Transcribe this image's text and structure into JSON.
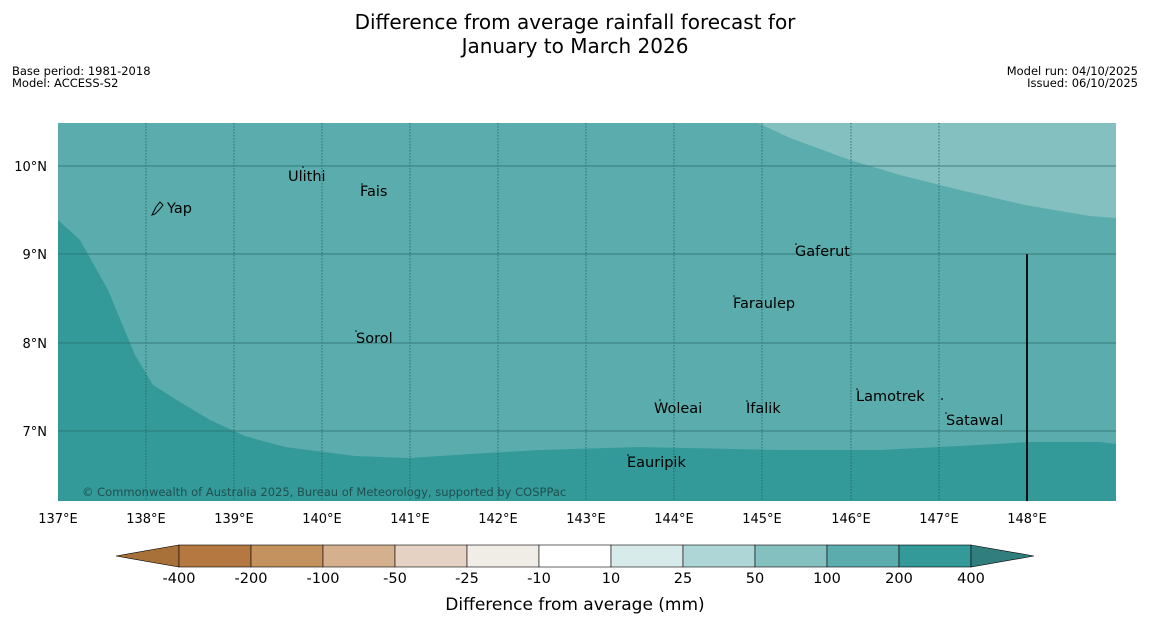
{
  "title": {
    "line1": "Difference from average rainfall forecast for",
    "line2": "January to March 2026"
  },
  "meta": {
    "base_period": "Base period: 1981-2018",
    "model": "Model: ACCESS-S2",
    "model_run": "Model run: 04/10/2025",
    "issued": "Issued: 06/10/2025"
  },
  "map": {
    "lon_labels": [
      "137°E",
      "138°E",
      "139°E",
      "140°E",
      "141°E",
      "142°E",
      "143°E",
      "144°E",
      "145°E",
      "146°E",
      "147°E",
      "148°E"
    ],
    "lat_labels": [
      "10°N",
      "9°N",
      "8°N",
      "7°N"
    ],
    "places": [
      {
        "name": "Ulithi"
      },
      {
        "name": "Fais"
      },
      {
        "name": "Yap"
      },
      {
        "name": "Gaferut"
      },
      {
        "name": "Faraulep"
      },
      {
        "name": "Sorol"
      },
      {
        "name": "Lamotrek"
      },
      {
        "name": "Woleai"
      },
      {
        "name": "Ifalik"
      },
      {
        "name": "Satawal"
      },
      {
        "name": "Eauripik"
      }
    ],
    "copyright": "© Commonwealth of Australia 2025, Bureau of Meteorology, supported by COSPPac",
    "colors": {
      "band_200_400": "#339a99",
      "band_100_200": "#5bacad",
      "band_50_100": "#84c0c0"
    }
  },
  "legend": {
    "title": "Difference from average (mm)",
    "ticks": [
      "-400",
      "-200",
      "-100",
      "-50",
      "-25",
      "-10",
      "10",
      "25",
      "50",
      "100",
      "200",
      "400"
    ],
    "colors": [
      "#a8713a",
      "#b57840",
      "#c4925f",
      "#d4b08f",
      "#e5d2c2",
      "#f0ece6",
      "#ffffff",
      "#d6ebea",
      "#aed6d6",
      "#84c0c0",
      "#5bacad",
      "#339a99",
      "#317e7e"
    ]
  }
}
